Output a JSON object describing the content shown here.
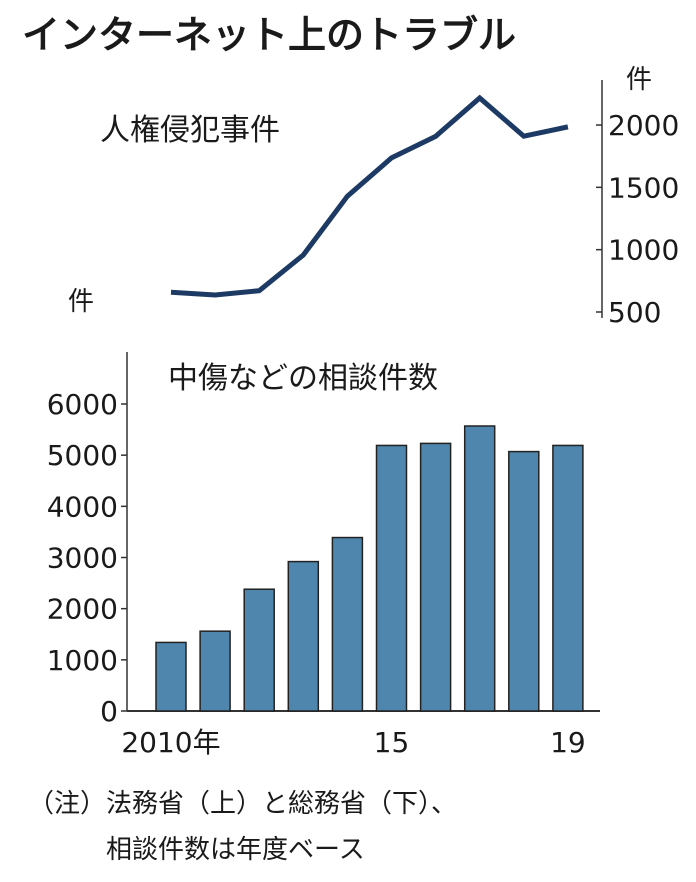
{
  "title": "インターネット上のトラブル",
  "chart_data": [
    {
      "type": "line",
      "title": "人権侵犯事件",
      "unit": "件",
      "x": [
        2010,
        2011,
        2012,
        2013,
        2014,
        2015,
        2016,
        2017,
        2018,
        2019
      ],
      "values": [
        658,
        636,
        671,
        957,
        1429,
        1736,
        1909,
        2217,
        1910,
        1985
      ],
      "ylim": [
        500,
        2000
      ],
      "yticks": [
        "500",
        "1000",
        "1500",
        "2000"
      ],
      "yaxis_position": "right",
      "color": "#1c3a63",
      "grid": false
    },
    {
      "type": "bar",
      "title": "中傷などの相談件数",
      "unit": "件",
      "categories": [
        2010,
        2011,
        2012,
        2013,
        2014,
        2015,
        2016,
        2017,
        2018,
        2019
      ],
      "values": [
        1340,
        1560,
        2380,
        2920,
        3390,
        5190,
        5230,
        5570,
        5070,
        5190
      ],
      "ylim": [
        0,
        6000
      ],
      "yticks": [
        "0",
        "1000",
        "2000",
        "3000",
        "4000",
        "5000",
        "6000"
      ],
      "xtick_labels": [
        "2010年",
        "15",
        "19"
      ],
      "color": "#4f86ad",
      "grid": false
    }
  ],
  "notes": [
    "（注）法務省（上）と総務省（下）、",
    "相談件数は年度ベース"
  ]
}
